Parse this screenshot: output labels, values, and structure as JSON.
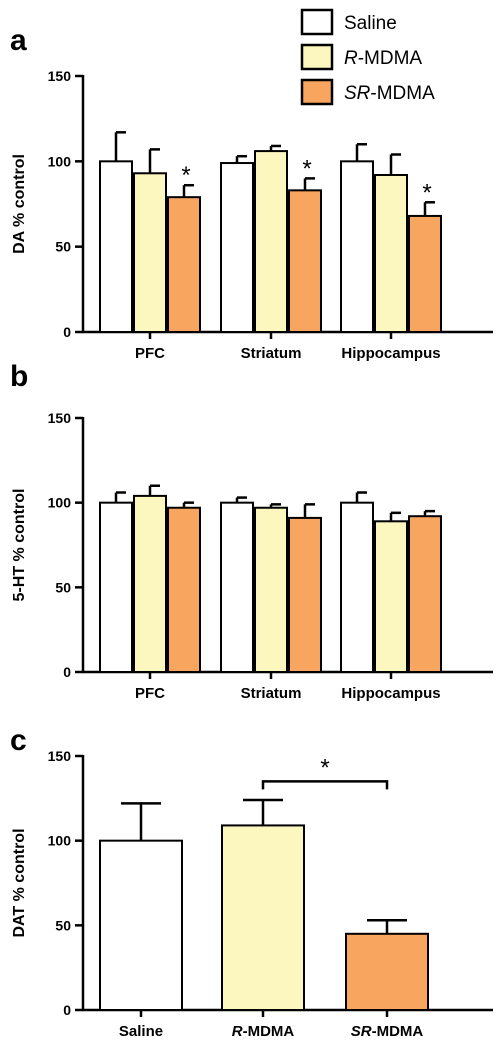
{
  "colors": {
    "saline": "#ffffff",
    "r_mdma": "#fcf7bf",
    "sr_mdma": "#f7a55f"
  },
  "legend": [
    {
      "label": "Saline",
      "color_key": "saline",
      "prefix": "",
      "suffix": ""
    },
    {
      "label": "R-MDMA",
      "color_key": "r_mdma",
      "prefix": "R",
      "suffix": "-MDMA"
    },
    {
      "label": "SR-MDMA",
      "color_key": "sr_mdma",
      "prefix": "SR",
      "suffix": "-MDMA"
    }
  ],
  "chart_data": [
    {
      "panel": "a",
      "type": "bar",
      "ylabel": "DA % control",
      "ylim": [
        0,
        150
      ],
      "yticks": [
        0,
        50,
        100,
        150
      ],
      "categories": [
        "PFC",
        "Striatum",
        "Hippocampus"
      ],
      "series": [
        {
          "name": "Saline",
          "color_key": "saline",
          "values": [
            100,
            99,
            100
          ],
          "errors": [
            17,
            4,
            10
          ]
        },
        {
          "name": "R-MDMA",
          "color_key": "r_mdma",
          "values": [
            93,
            106,
            92
          ],
          "errors": [
            14,
            3,
            12
          ]
        },
        {
          "name": "SR-MDMA",
          "color_key": "sr_mdma",
          "values": [
            79,
            83,
            68
          ],
          "errors": [
            7,
            7,
            8
          ]
        }
      ],
      "annotations": [
        {
          "text": "*",
          "category": 0,
          "series": 2
        },
        {
          "text": "*",
          "category": 1,
          "series": 2
        },
        {
          "text": "*",
          "category": 2,
          "series": 2
        }
      ]
    },
    {
      "panel": "b",
      "type": "bar",
      "ylabel": "5-HT % control",
      "ylim": [
        0,
        150
      ],
      "yticks": [
        0,
        50,
        100,
        150
      ],
      "categories": [
        "PFC",
        "Striatum",
        "Hippocampus"
      ],
      "series": [
        {
          "name": "Saline",
          "color_key": "saline",
          "values": [
            100,
            100,
            100
          ],
          "errors": [
            6,
            3,
            6
          ]
        },
        {
          "name": "R-MDMA",
          "color_key": "r_mdma",
          "values": [
            104,
            97,
            89
          ],
          "errors": [
            6,
            2,
            5
          ]
        },
        {
          "name": "SR-MDMA",
          "color_key": "sr_mdma",
          "values": [
            97,
            91,
            92
          ],
          "errors": [
            3,
            8,
            3
          ]
        }
      ],
      "annotations": []
    },
    {
      "panel": "c",
      "type": "bar",
      "ylabel": "DAT % control",
      "ylim": [
        0,
        150
      ],
      "yticks": [
        0,
        50,
        100,
        150
      ],
      "categories": [
        {
          "prefix": "",
          "suffix": "Saline"
        },
        {
          "prefix": "R",
          "suffix": "-MDMA"
        },
        {
          "prefix": "SR",
          "suffix": "-MDMA"
        }
      ],
      "bars": [
        {
          "name": "Saline",
          "color_key": "saline",
          "value": 100,
          "error": 22
        },
        {
          "name": "R-MDMA",
          "color_key": "r_mdma",
          "value": 109,
          "error": 15
        },
        {
          "name": "SR-MDMA",
          "color_key": "sr_mdma",
          "value": 45,
          "error": 8
        }
      ],
      "significance": {
        "text": "*",
        "from": 1,
        "to": 2
      }
    }
  ]
}
